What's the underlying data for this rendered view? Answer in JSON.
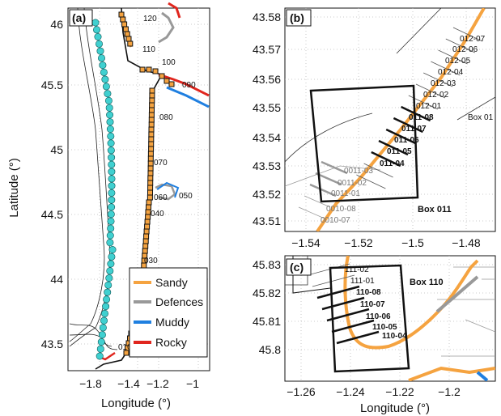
{
  "colors": {
    "sandy": "#F5A340",
    "defences": "#999999",
    "muddy": "#1F7FE0",
    "rocky": "#E0261E",
    "markers": "#40D0D0"
  },
  "panel_a": {
    "label": "(a)",
    "y_ticks": [
      "46",
      "45.5",
      "45",
      "44.5",
      "44",
      "43.5"
    ],
    "x_ticks": [
      "−1.8",
      "−1.4",
      "−1.2",
      "−1"
    ],
    "ylabel": "Latitude (°)",
    "xlabel": "Longitude (°)",
    "box_labels": [
      "120",
      "110",
      "100",
      "090",
      "080",
      "070",
      "060",
      "050",
      "040",
      "030",
      "010"
    ],
    "legend": [
      {
        "label": "Sandy",
        "key": "sandy"
      },
      {
        "label": "Defences",
        "key": "defences"
      },
      {
        "label": "Muddy",
        "key": "muddy"
      },
      {
        "label": "Rocky",
        "key": "rocky"
      }
    ]
  },
  "panel_b": {
    "label": "(b)",
    "y_ticks": [
      "43.58",
      "43.57",
      "43.56",
      "43.55",
      "43.54",
      "43.53",
      "43.52",
      "43.51"
    ],
    "x_ticks": [
      "−1.54",
      "−1.52",
      "−1.5",
      "−1.48"
    ],
    "transects_plain": [
      "012-07",
      "012-06",
      "012-05",
      "012-04",
      "012-03",
      "012-02",
      "012-01"
    ],
    "transects_bold": [
      "011-08",
      "011-07",
      "011-06",
      "011-05",
      "011-04"
    ],
    "transects_grey": [
      "0011-03",
      "0011-02",
      "0011-01",
      "0010-08",
      "0010-07"
    ],
    "box_labels": [
      "Box 01",
      "Box 011"
    ]
  },
  "panel_c": {
    "label": "(c)",
    "y_ticks": [
      "45.83",
      "45.82",
      "45.81",
      "45.8"
    ],
    "x_ticks": [
      "−1.26",
      "−1.24",
      "−1.22",
      "−1.2"
    ],
    "xlabel": "Longitude (°)",
    "transects_plain": [
      "111-02",
      "111-01"
    ],
    "transects_bold": [
      "110-08",
      "110-07",
      "110-06",
      "110-05",
      "110-04"
    ],
    "box_labels": [
      "Box 110"
    ]
  }
}
